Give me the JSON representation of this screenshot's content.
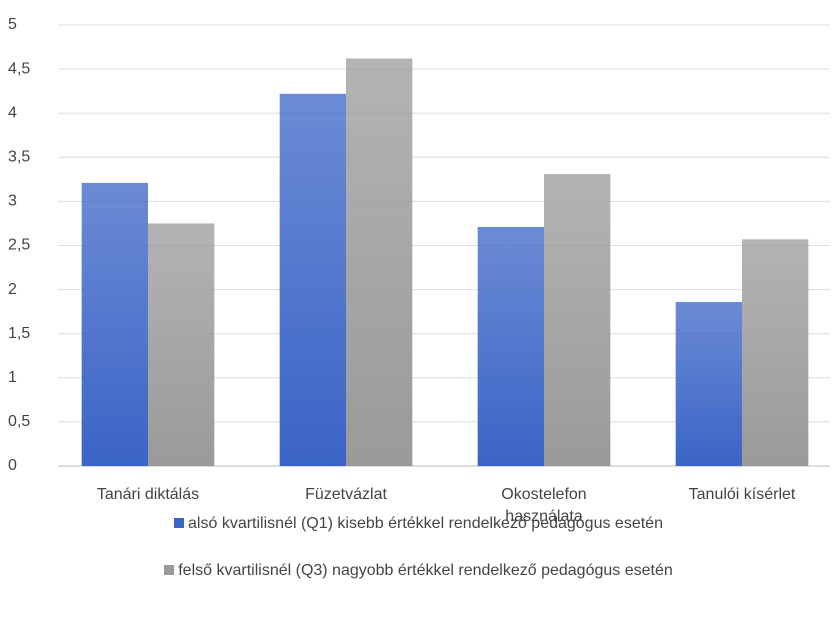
{
  "chart_data": {
    "type": "bar",
    "categories": [
      "Tanári diktálás",
      "Füzetvázlat",
      "Okostelefon használata",
      "Tanulói kísérlet"
    ],
    "series": [
      {
        "name": "alsó kvartilisnél (Q1) kisebb értékkel rendelkező pedagógus esetén",
        "color": "#3a64c6",
        "values": [
          3.21,
          4.22,
          2.71,
          1.86
        ]
      },
      {
        "name": "felső kvartilisnél (Q3) nagyobb értékkel rendelkező pedagógus esetén",
        "color": "#9a9a9a",
        "values": [
          2.75,
          4.62,
          3.31,
          2.57
        ]
      }
    ],
    "ylim": [
      0,
      5
    ],
    "yticks": [
      0,
      {
        "value": 0.5,
        "label": "0,5"
      },
      1,
      {
        "value": 1.5,
        "label": "1,5"
      },
      2,
      {
        "value": 2.5,
        "label": "2,5"
      },
      3,
      {
        "value": 3.5,
        "label": "3,5"
      },
      4,
      {
        "value": 4.5,
        "label": "4,5"
      },
      5
    ],
    "grid": true,
    "legend": "bottom"
  }
}
